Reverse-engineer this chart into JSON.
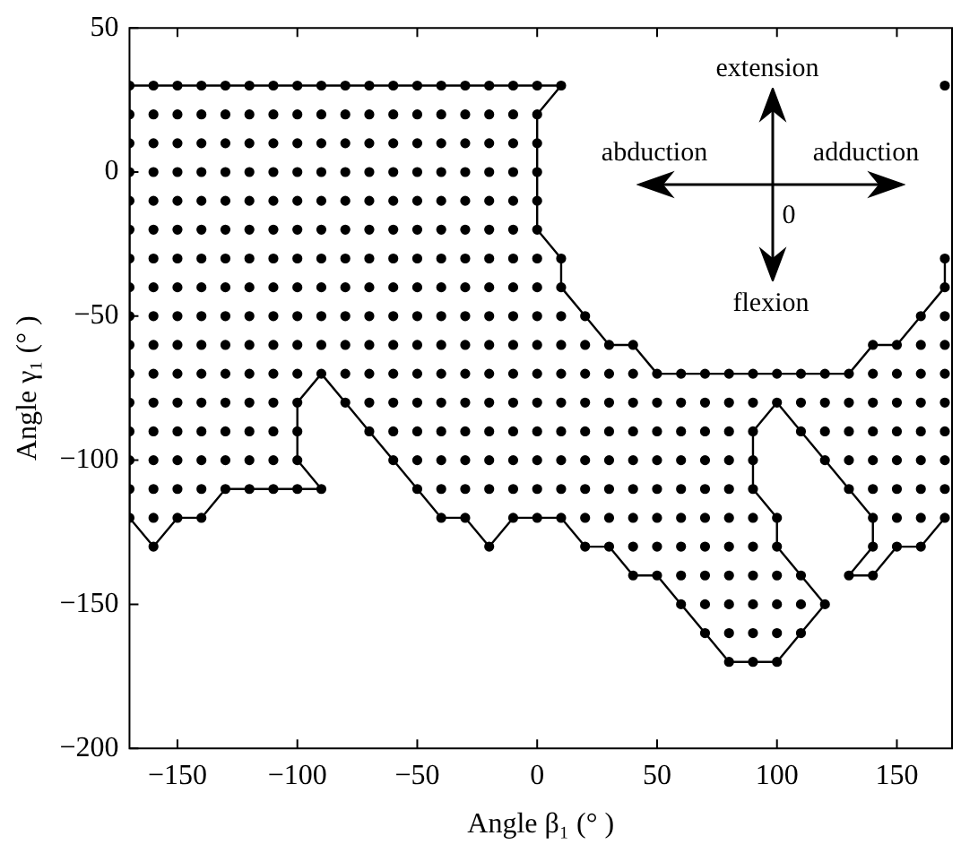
{
  "chart_data": {
    "type": "scatter",
    "xlabel": "Angle β₁ (° )",
    "ylabel": "Angle γ₁ (° )",
    "xlim": [
      -170,
      173
    ],
    "ylim": [
      -200,
      50
    ],
    "xticks": [
      -150,
      -100,
      -50,
      0,
      50,
      100,
      150
    ],
    "yticks": [
      -200,
      -150,
      -100,
      -50,
      0,
      50
    ],
    "marker": "circle",
    "annotations": [
      "extension",
      "abduction",
      "adduction",
      "0",
      "flexion"
    ],
    "series": [
      {
        "type": "line",
        "marker": "none",
        "color": "#000000",
        "x": [
          -170,
          -170,
          10,
          0,
          0,
          10,
          10,
          20,
          30,
          40,
          50,
          130,
          140,
          150,
          160,
          170,
          170
        ],
        "values": [
          -120,
          30,
          30,
          20,
          -20,
          -30,
          -40,
          -50,
          -60,
          -60,
          -70,
          -70,
          -60,
          -60,
          -50,
          -40,
          -30
        ]
      },
      {
        "type": "line",
        "marker": "none",
        "color": "#000000",
        "x": [
          -170,
          -160,
          -150,
          -140,
          -130,
          -90,
          -100,
          -100,
          -90,
          -80,
          -70,
          -60,
          -50,
          -40,
          -30,
          -20,
          -10,
          0,
          10,
          20,
          30,
          40,
          50,
          60,
          70,
          80,
          90,
          100,
          110,
          120,
          110,
          100,
          100,
          90,
          90,
          100,
          110,
          120,
          130,
          140,
          140,
          130,
          140,
          150,
          160,
          170
        ],
        "values": [
          -120,
          -130,
          -120,
          -120,
          -110,
          -110,
          -100,
          -80,
          -70,
          -80,
          -90,
          -100,
          -110,
          -120,
          -120,
          -130,
          -120,
          -120,
          -120,
          -130,
          -130,
          -140,
          -140,
          -150,
          -160,
          -170,
          -170,
          -170,
          -160,
          -150,
          -140,
          -130,
          -120,
          -110,
          -90,
          -80,
          -90,
          -100,
          -110,
          -120,
          -130,
          -140,
          -140,
          -130,
          -130,
          -120
        ]
      },
      {
        "color": "#000000",
        "x": [
          -170,
          -160,
          -150,
          -140,
          -130,
          -120,
          -110,
          -100,
          -90,
          -80,
          -70,
          -60,
          -50,
          -40,
          -30,
          -20,
          -10,
          0,
          10,
          170
        ],
        "values": [
          30,
          30,
          30,
          30,
          30,
          30,
          30,
          30,
          30,
          30,
          30,
          30,
          30,
          30,
          30,
          30,
          30,
          30,
          30,
          30
        ]
      },
      {
        "color": "#000000",
        "x": [
          -170,
          -160,
          -150,
          -140,
          -130,
          -120,
          -110,
          -100,
          -90,
          -80,
          -70,
          -60,
          -50,
          -40,
          -30,
          -20,
          -10,
          0
        ],
        "values": [
          20,
          20,
          20,
          20,
          20,
          20,
          20,
          20,
          20,
          20,
          20,
          20,
          20,
          20,
          20,
          20,
          20,
          20
        ]
      },
      {
        "color": "#000000",
        "x": [
          -170,
          -160,
          -150,
          -140,
          -130,
          -120,
          -110,
          -100,
          -90,
          -80,
          -70,
          -60,
          -50,
          -40,
          -30,
          -20,
          -10,
          0
        ],
        "values": [
          10,
          10,
          10,
          10,
          10,
          10,
          10,
          10,
          10,
          10,
          10,
          10,
          10,
          10,
          10,
          10,
          10,
          10
        ]
      },
      {
        "color": "#000000",
        "x": [
          -170,
          -160,
          -150,
          -140,
          -130,
          -120,
          -110,
          -100,
          -90,
          -80,
          -70,
          -60,
          -50,
          -40,
          -30,
          -20,
          -10,
          0
        ],
        "values": [
          0,
          0,
          0,
          0,
          0,
          0,
          0,
          0,
          0,
          0,
          0,
          0,
          0,
          0,
          0,
          0,
          0,
          0
        ]
      },
      {
        "color": "#000000",
        "x": [
          -170,
          -160,
          -150,
          -140,
          -130,
          -120,
          -110,
          -100,
          -90,
          -80,
          -70,
          -60,
          -50,
          -40,
          -30,
          -20,
          -10,
          0
        ],
        "values": [
          -10,
          -10,
          -10,
          -10,
          -10,
          -10,
          -10,
          -10,
          -10,
          -10,
          -10,
          -10,
          -10,
          -10,
          -10,
          -10,
          -10,
          -10
        ]
      },
      {
        "color": "#000000",
        "x": [
          -170,
          -160,
          -150,
          -140,
          -130,
          -120,
          -110,
          -100,
          -90,
          -80,
          -70,
          -60,
          -50,
          -40,
          -30,
          -20,
          -10,
          0
        ],
        "values": [
          -20,
          -20,
          -20,
          -20,
          -20,
          -20,
          -20,
          -20,
          -20,
          -20,
          -20,
          -20,
          -20,
          -20,
          -20,
          -20,
          -20,
          -20
        ]
      },
      {
        "color": "#000000",
        "x": [
          -170,
          -160,
          -150,
          -140,
          -130,
          -120,
          -110,
          -100,
          -90,
          -80,
          -70,
          -60,
          -50,
          -40,
          -30,
          -20,
          -10,
          0,
          10,
          170
        ],
        "values": [
          -30,
          -30,
          -30,
          -30,
          -30,
          -30,
          -30,
          -30,
          -30,
          -30,
          -30,
          -30,
          -30,
          -30,
          -30,
          -30,
          -30,
          -30,
          -30,
          -30
        ]
      },
      {
        "color": "#000000",
        "x": [
          -170,
          -160,
          -150,
          -140,
          -130,
          -120,
          -110,
          -100,
          -90,
          -80,
          -70,
          -60,
          -50,
          -40,
          -30,
          -20,
          -10,
          0,
          10,
          170
        ],
        "values": [
          -40,
          -40,
          -40,
          -40,
          -40,
          -40,
          -40,
          -40,
          -40,
          -40,
          -40,
          -40,
          -40,
          -40,
          -40,
          -40,
          -40,
          -40,
          -40,
          -40
        ]
      },
      {
        "color": "#000000",
        "x": [
          -170,
          -160,
          -150,
          -140,
          -130,
          -120,
          -110,
          -100,
          -90,
          -80,
          -70,
          -60,
          -50,
          -40,
          -30,
          -20,
          -10,
          0,
          10,
          20,
          160,
          170
        ],
        "values": [
          -50,
          -50,
          -50,
          -50,
          -50,
          -50,
          -50,
          -50,
          -50,
          -50,
          -50,
          -50,
          -50,
          -50,
          -50,
          -50,
          -50,
          -50,
          -50,
          -50,
          -50,
          -50
        ]
      },
      {
        "color": "#000000",
        "x": [
          -170,
          -160,
          -150,
          -140,
          -130,
          -120,
          -110,
          -100,
          -90,
          -80,
          -70,
          -60,
          -50,
          -40,
          -30,
          -20,
          -10,
          0,
          10,
          20,
          30,
          40,
          140,
          150,
          160,
          170
        ],
        "values": [
          -60,
          -60,
          -60,
          -60,
          -60,
          -60,
          -60,
          -60,
          -60,
          -60,
          -60,
          -60,
          -60,
          -60,
          -60,
          -60,
          -60,
          -60,
          -60,
          -60,
          -60,
          -60,
          -60,
          -60,
          -60,
          -60
        ]
      },
      {
        "color": "#000000",
        "x": [
          -170,
          -160,
          -150,
          -140,
          -130,
          -120,
          -110,
          -100,
          -90,
          -80,
          -70,
          -60,
          -50,
          -40,
          -30,
          -20,
          -10,
          0,
          10,
          20,
          30,
          40,
          50,
          60,
          70,
          80,
          90,
          100,
          110,
          120,
          130,
          140,
          150,
          160,
          170
        ],
        "values": [
          -70,
          -70,
          -70,
          -70,
          -70,
          -70,
          -70,
          -70,
          -70,
          -70,
          -70,
          -70,
          -70,
          -70,
          -70,
          -70,
          -70,
          -70,
          -70,
          -70,
          -70,
          -70,
          -70,
          -70,
          -70,
          -70,
          -70,
          -70,
          -70,
          -70,
          -70,
          -70,
          -70,
          -70,
          -70
        ]
      },
      {
        "color": "#000000",
        "x": [
          -170,
          -160,
          -150,
          -140,
          -130,
          -120,
          -110,
          -100,
          -80,
          -70,
          -60,
          -50,
          -40,
          -30,
          -20,
          -10,
          0,
          10,
          20,
          30,
          40,
          50,
          60,
          70,
          80,
          90,
          100,
          110,
          120,
          130,
          140,
          150,
          160,
          170
        ],
        "values": [
          -80,
          -80,
          -80,
          -80,
          -80,
          -80,
          -80,
          -80,
          -80,
          -80,
          -80,
          -80,
          -80,
          -80,
          -80,
          -80,
          -80,
          -80,
          -80,
          -80,
          -80,
          -80,
          -80,
          -80,
          -80,
          -80,
          -80,
          -80,
          -80,
          -80,
          -80,
          -80,
          -80,
          -80
        ]
      },
      {
        "color": "#000000",
        "x": [
          -170,
          -160,
          -150,
          -140,
          -130,
          -120,
          -110,
          -100,
          -70,
          -60,
          -50,
          -40,
          -30,
          -20,
          -10,
          0,
          10,
          20,
          30,
          40,
          50,
          60,
          70,
          80,
          90,
          110,
          120,
          130,
          140,
          150,
          160,
          170
        ],
        "values": [
          -90,
          -90,
          -90,
          -90,
          -90,
          -90,
          -90,
          -90,
          -90,
          -90,
          -90,
          -90,
          -90,
          -90,
          -90,
          -90,
          -90,
          -90,
          -90,
          -90,
          -90,
          -90,
          -90,
          -90,
          -90,
          -90,
          -90,
          -90,
          -90,
          -90,
          -90,
          -90
        ]
      },
      {
        "color": "#000000",
        "x": [
          -170,
          -160,
          -150,
          -140,
          -130,
          -120,
          -110,
          -100,
          -60,
          -50,
          -40,
          -30,
          -20,
          -10,
          0,
          10,
          20,
          30,
          40,
          50,
          60,
          70,
          80,
          90,
          120,
          130,
          140,
          150,
          160,
          170
        ],
        "values": [
          -100,
          -100,
          -100,
          -100,
          -100,
          -100,
          -100,
          -100,
          -100,
          -100,
          -100,
          -100,
          -100,
          -100,
          -100,
          -100,
          -100,
          -100,
          -100,
          -100,
          -100,
          -100,
          -100,
          -100,
          -100,
          -100,
          -100,
          -100,
          -100,
          -100
        ]
      },
      {
        "color": "#000000",
        "x": [
          -170,
          -160,
          -150,
          -140,
          -130,
          -120,
          -110,
          -100,
          -90,
          -50,
          -40,
          -30,
          -20,
          -10,
          0,
          10,
          20,
          30,
          40,
          50,
          60,
          70,
          80,
          90,
          130,
          140,
          150,
          160,
          170
        ],
        "values": [
          -110,
          -110,
          -110,
          -110,
          -110,
          -110,
          -110,
          -110,
          -110,
          -110,
          -110,
          -110,
          -110,
          -110,
          -110,
          -110,
          -110,
          -110,
          -110,
          -110,
          -110,
          -110,
          -110,
          -110,
          -110,
          -110,
          -110,
          -110,
          -110
        ]
      },
      {
        "color": "#000000",
        "x": [
          -170,
          -160,
          -150,
          -140,
          -40,
          -30,
          -10,
          0,
          10,
          20,
          30,
          40,
          50,
          60,
          70,
          80,
          90,
          100,
          140,
          150,
          160,
          170
        ],
        "values": [
          -120,
          -120,
          -120,
          -120,
          -120,
          -120,
          -120,
          -120,
          -120,
          -120,
          -120,
          -120,
          -120,
          -120,
          -120,
          -120,
          -120,
          -120,
          -120,
          -120,
          -120,
          -120
        ]
      },
      {
        "color": "#000000",
        "x": [
          -160,
          -20,
          20,
          30,
          40,
          50,
          60,
          70,
          80,
          90,
          100,
          140,
          150,
          160
        ],
        "values": [
          -130,
          -130,
          -130,
          -130,
          -130,
          -130,
          -130,
          -130,
          -130,
          -130,
          -130,
          -130,
          -130,
          -130
        ]
      },
      {
        "color": "#000000",
        "x": [
          40,
          50,
          60,
          70,
          80,
          90,
          100,
          110,
          130,
          140
        ],
        "values": [
          -140,
          -140,
          -140,
          -140,
          -140,
          -140,
          -140,
          -140,
          -140,
          -140
        ]
      },
      {
        "color": "#000000",
        "x": [
          60,
          70,
          80,
          90,
          100,
          110,
          120
        ],
        "values": [
          -150,
          -150,
          -150,
          -150,
          -150,
          -150,
          -150
        ]
      },
      {
        "color": "#000000",
        "x": [
          70,
          80,
          90,
          100,
          110
        ],
        "values": [
          -160,
          -160,
          -160,
          -160,
          -160
        ]
      },
      {
        "color": "#000000",
        "x": [
          80,
          90,
          100
        ],
        "values": [
          -170,
          -170,
          -170
        ]
      }
    ]
  }
}
